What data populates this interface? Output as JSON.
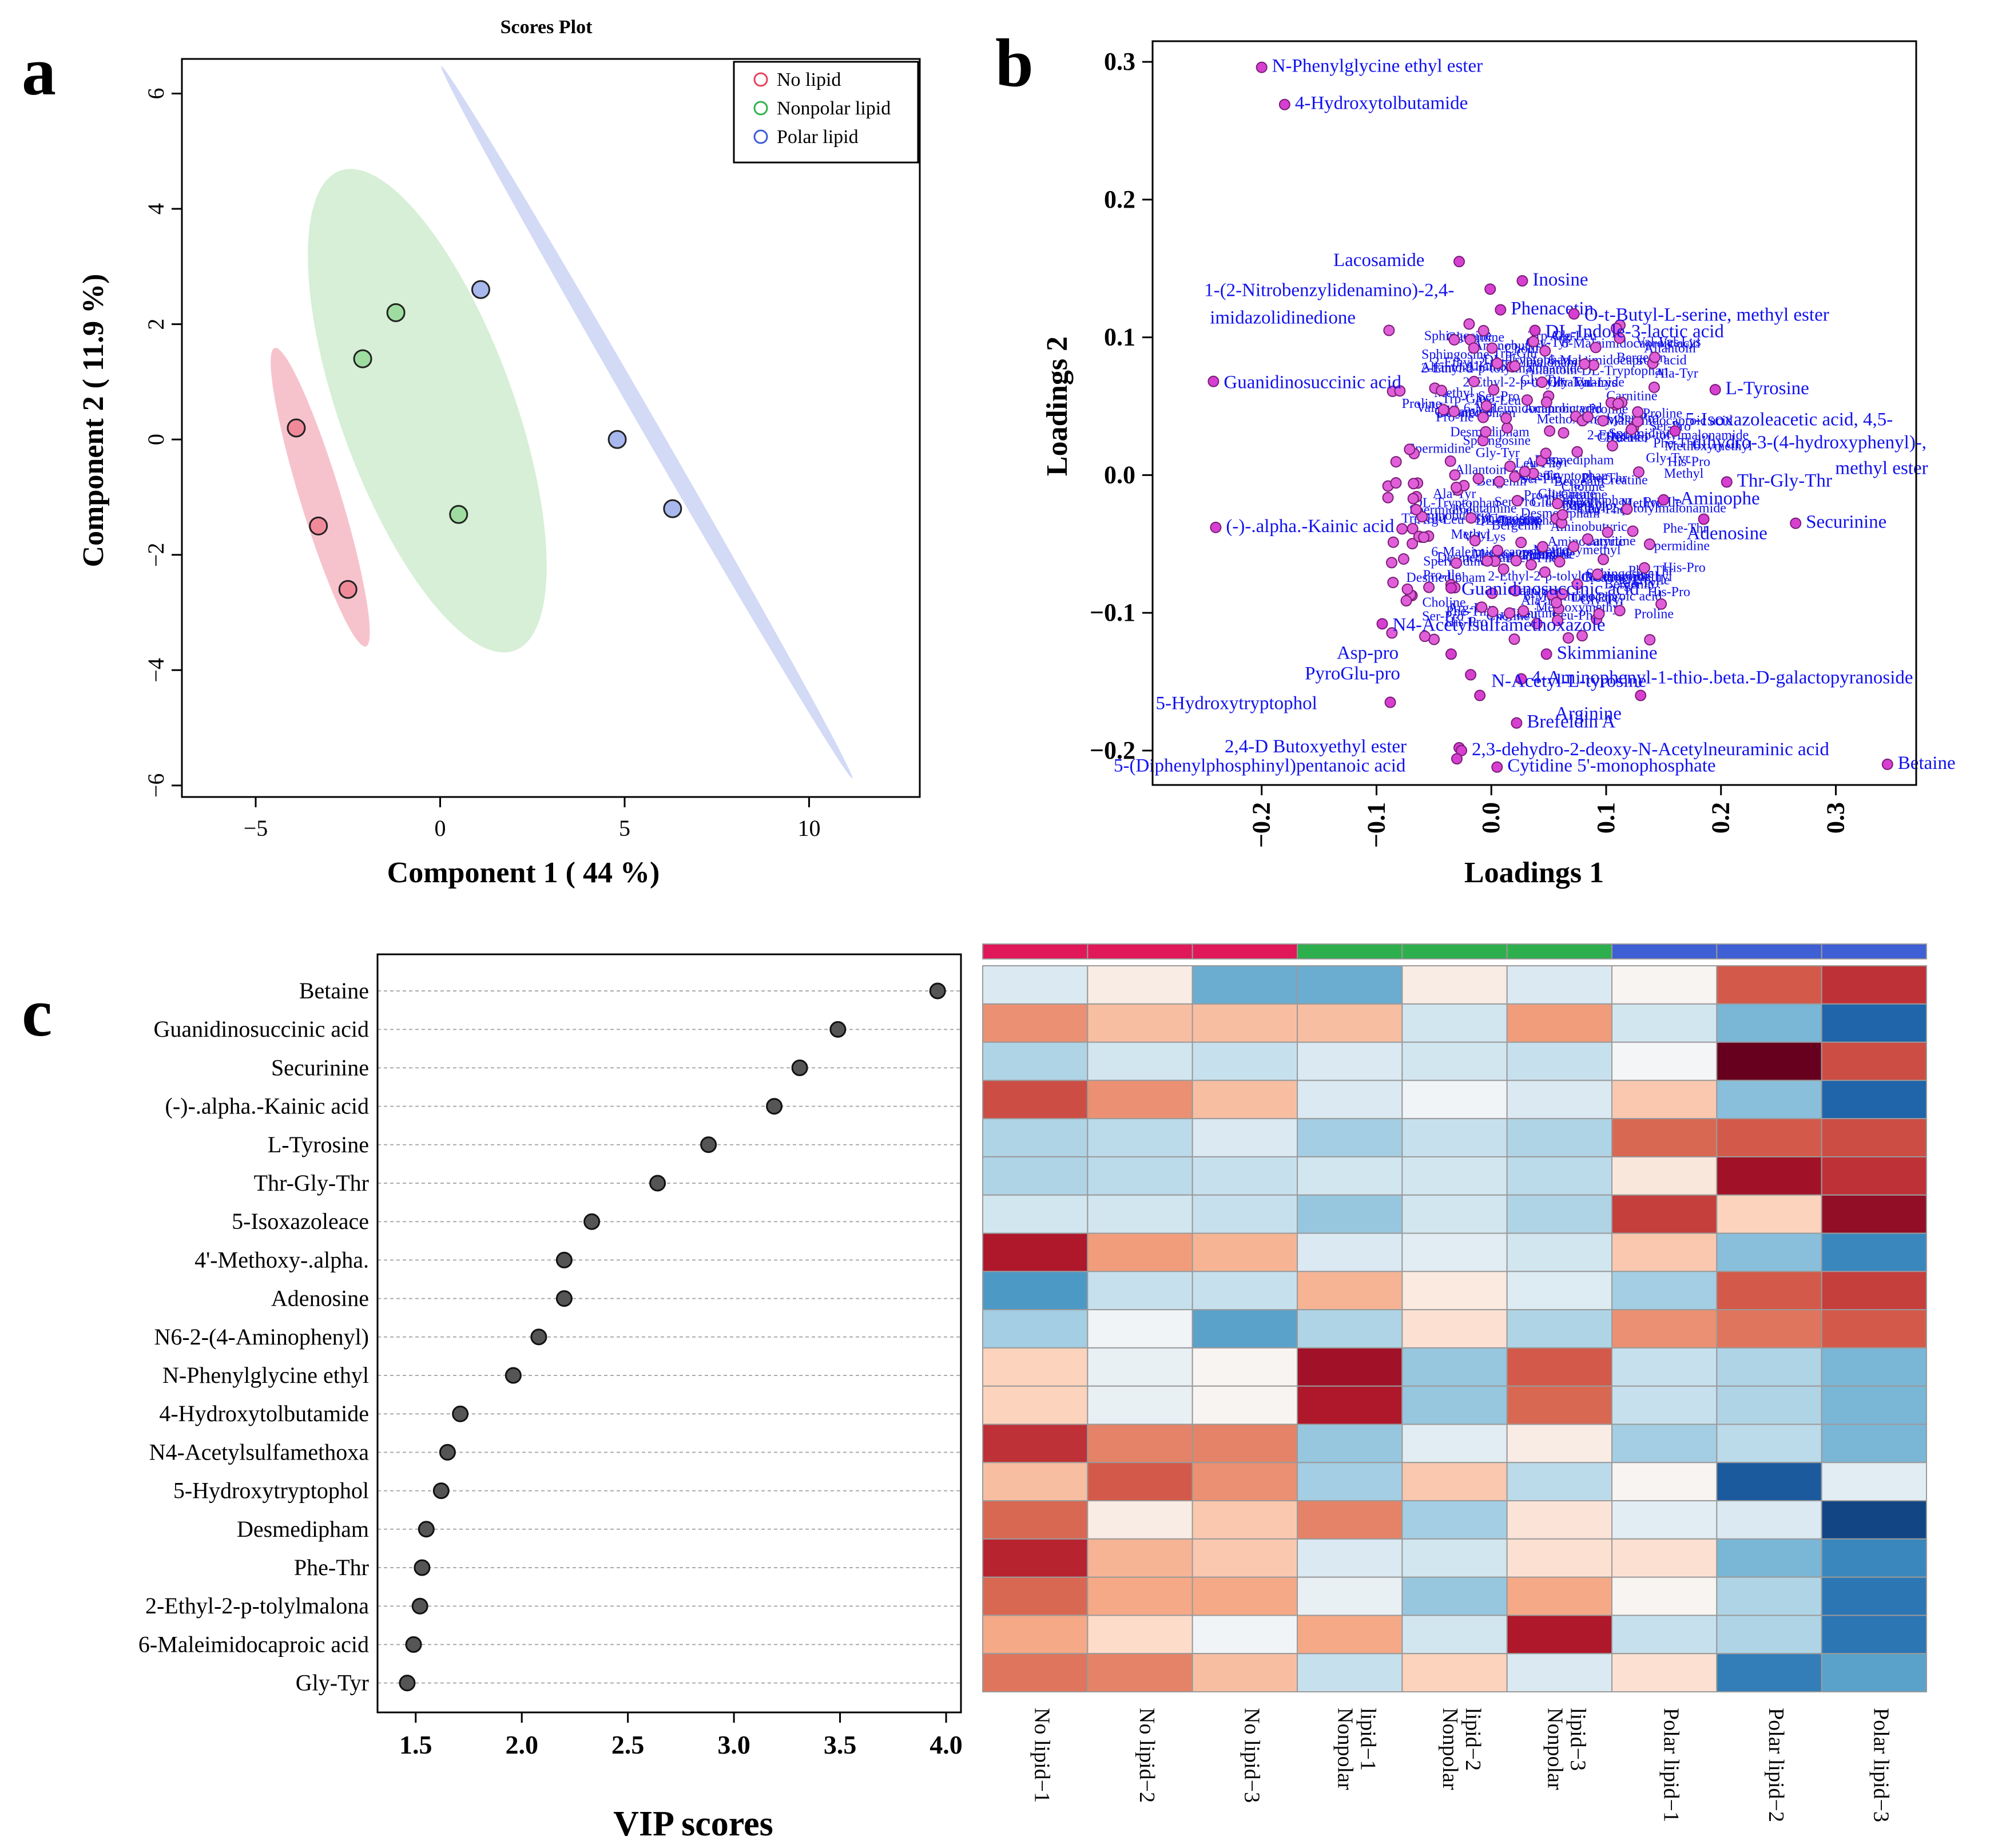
{
  "panel_letters": {
    "a": "a",
    "b": "b",
    "c": "c"
  },
  "chart_data": [
    {
      "id": "a",
      "type": "scatter",
      "title": "Scores Plot",
      "xlabel": "Component 1 ( 44 %)",
      "ylabel": "Component 2 ( 11.9 %)",
      "xlim": [
        -7,
        13
      ],
      "ylim": [
        -6.2,
        6.6
      ],
      "xticks": [
        -5,
        0,
        5,
        10
      ],
      "yticks": [
        -6,
        -4,
        -2,
        0,
        2,
        4,
        6
      ],
      "legend_position": "top-right",
      "series": [
        {
          "name": "No lipid",
          "color": "#e8425b",
          "fill": "#f08a99",
          "ellipse_fill": "#f4b9c4",
          "points": [
            [
              -3.9,
              0.2
            ],
            [
              -3.3,
              -1.5
            ],
            [
              -2.5,
              -2.6
            ]
          ]
        },
        {
          "name": "Nonpolar lipid",
          "color": "#2fb24a",
          "fill": "#9fdc9f",
          "ellipse_fill": "#cfeccf",
          "points": [
            [
              -2.1,
              1.4
            ],
            [
              -1.2,
              2.2
            ],
            [
              0.5,
              -1.3
            ]
          ]
        },
        {
          "name": "Polar lipid",
          "color": "#3d5bd9",
          "fill": "#a8b8ee",
          "ellipse_fill": "#cbd3f4",
          "points": [
            [
              1.1,
              2.6
            ],
            [
              4.8,
              0.0
            ],
            [
              6.3,
              -1.2
            ]
          ]
        }
      ]
    },
    {
      "id": "b",
      "type": "scatter",
      "xlabel": "Loadings 1",
      "ylabel": "Loadings 2",
      "xlim": [
        -0.295,
        0.37
      ],
      "ylim": [
        -0.225,
        0.315
      ],
      "xticks": [
        -0.2,
        -0.1,
        0.0,
        0.1,
        0.2,
        0.3
      ],
      "yticks": [
        -0.2,
        -0.1,
        0.0,
        0.1,
        0.2,
        0.3
      ],
      "tick_labels": {
        "x": [
          "−0.2",
          "−0.1",
          "0.0",
          "0.1",
          "0.2",
          "0.3"
        ],
        "y": [
          "−0.2",
          "−0.1",
          "0.0",
          "0.1",
          "0.2",
          "0.3"
        ]
      },
      "point_color": "#d63fd0",
      "label_color": "#1111ee",
      "labeled_points": [
        {
          "x": -0.2,
          "y": 0.296,
          "label": "N-Phenylglycine ethyl ester"
        },
        {
          "x": -0.18,
          "y": 0.269,
          "label": "4-Hydroxytolbutamide"
        },
        {
          "x": -0.028,
          "y": 0.155,
          "label": "Lacosamide"
        },
        {
          "x": 0.027,
          "y": 0.141,
          "label": "Inosine"
        },
        {
          "x": -0.001,
          "y": 0.135,
          "label": "1-(2-Nitrobenzylidenamino)-2,4-"
        },
        {
          "x": -0.001,
          "y": 0.135,
          "label": "imidazolidinedione"
        },
        {
          "x": 0.008,
          "y": 0.12,
          "label": "Phenacetin"
        },
        {
          "x": 0.072,
          "y": 0.117,
          "label": "O-t-Butyl-L-serine, methyl ester"
        },
        {
          "x": 0.038,
          "y": 0.105,
          "label": "DL-Indole-3-lactic acid"
        },
        {
          "x": -0.242,
          "y": 0.068,
          "label": "Guanidinosuccinic acid"
        },
        {
          "x": 0.195,
          "y": 0.062,
          "label": "L-Tyrosine"
        },
        {
          "x": 0.16,
          "y": 0.032,
          "label": "5-Isoxazoleacetic acid, 4,5-"
        },
        {
          "x": 0.16,
          "y": 0.032,
          "label": "dihydro-3-(4-hydroxyphenyl)-,"
        },
        {
          "x": 0.16,
          "y": 0.032,
          "label": "methyl ester"
        },
        {
          "x": 0.205,
          "y": -0.005,
          "label": "Thr-Gly-Thr"
        },
        {
          "x": 0.15,
          "y": -0.018,
          "label": "-Aminophe"
        },
        {
          "x": 0.185,
          "y": -0.032,
          "label": "Adenosine"
        },
        {
          "x": 0.265,
          "y": -0.035,
          "label": "Securinine"
        },
        {
          "x": -0.24,
          "y": -0.038,
          "label": "(-)-.alpha.-Kainic acid"
        },
        {
          "x": -0.095,
          "y": -0.108,
          "label": "N4-Acetylsulfamethoxazole"
        },
        {
          "x": -0.035,
          "y": -0.13,
          "label": "Asp-pro"
        },
        {
          "x": 0.048,
          "y": -0.13,
          "label": "Skimmianine"
        },
        {
          "x": -0.018,
          "y": -0.145,
          "label": "PyroGlu-pro"
        },
        {
          "x": 0.026,
          "y": -0.148,
          "label": "4-Aminophenyl-1-thio-.beta.-D-galactopyranoside"
        },
        {
          "x": 0.13,
          "y": -0.16,
          "label": "Arginine"
        },
        {
          "x": -0.088,
          "y": -0.165,
          "label": "5-Hydroxytryptophol"
        },
        {
          "x": -0.01,
          "y": -0.16,
          "label": "N-Acetyl-L-tyrosine"
        },
        {
          "x": 0.022,
          "y": -0.18,
          "label": "Brefeldin A"
        },
        {
          "x": -0.028,
          "y": -0.198,
          "label": "2,4-D Butoxyethyl ester"
        },
        {
          "x": -0.026,
          "y": -0.2,
          "label": "2,3-dehydro-2-deoxy-N-Acetylneuraminic acid"
        },
        {
          "x": -0.03,
          "y": -0.206,
          "label": "5-(Diphenylphosphinyl)pentanoic acid"
        },
        {
          "x": 0.005,
          "y": -0.212,
          "label": "Cytidine 5'-monophosphate"
        },
        {
          "x": 0.345,
          "y": -0.21,
          "label": "Betaine"
        },
        {
          "x": -0.035,
          "y": -0.082,
          "label": "Guanidinosuccinic acid"
        }
      ],
      "cluttered_labels": [
        "Desmedipham",
        "6-Maleimidocaproic acid",
        "DL-Tryptophan",
        "2-Ethyl-2-p-tolylmalonamide",
        "Phe-Thr",
        "Ser-Pro",
        "Gly-Tyr",
        "Pro-Ile",
        "Methoxymethyl",
        "Bergenin",
        "Arg-Leu",
        "Val-Lys",
        "Ala-Tyr",
        "His-Pro",
        "Leu-Phe",
        "Carnitine",
        "Glutamine",
        "Proline",
        "Aminobutyric",
        "Trp-Glu",
        "Creatine",
        "Sphingosine",
        "Allantoin",
        "Choline",
        "Methyl",
        "Spermidine"
      ]
    },
    {
      "id": "c-vip",
      "type": "scatter",
      "xlabel": "VIP scores",
      "xlim": [
        1.32,
        4.07
      ],
      "xticks": [
        1.5,
        2.0,
        2.5,
        3.0,
        3.5,
        4.0
      ],
      "tick_labels": [
        "1.5",
        "2.0",
        "2.5",
        "3.0",
        "3.5",
        "4.0"
      ],
      "categories": [
        "Betaine",
        "Guanidinosuccinic acid",
        "Securinine",
        "(-)-.alpha.-Kainic acid",
        "L-Tyrosine",
        "Thr-Gly-Thr",
        "5-Isoxazoleace",
        "4'-Methoxy-.alpha.",
        "Adenosine",
        "N6-2-(4-Aminophenyl)",
        "N-Phenylglycine ethyl",
        "4-Hydroxytolbutamide",
        "N4-Acetylsulfamethoxa",
        "5-Hydroxytryptophol",
        "Desmedipham",
        "Phe-Thr",
        "2-Ethyl-2-p-tolylmalona",
        "6-Maleimidocaproic acid",
        "Gly-Tyr"
      ],
      "values": [
        3.96,
        3.49,
        3.31,
        3.19,
        2.88,
        2.64,
        2.33,
        2.2,
        2.2,
        2.08,
        1.96,
        1.71,
        1.65,
        1.62,
        1.55,
        1.53,
        1.52,
        1.49,
        1.46
      ],
      "point_color": "#555555"
    },
    {
      "id": "c-heatmap",
      "type": "heatmap",
      "columns": [
        "No lipid−1",
        "No lipid−2",
        "No lipid−3",
        "Nonpolar lipid−1",
        "Nonpolar lipid−2",
        "Nonpolar lipid−3",
        "Polar lipid−1",
        "Polar lipid−2",
        "Polar lipid−3"
      ],
      "column_groups": [
        "No lipid",
        "No lipid",
        "No lipid",
        "Nonpolar lipid",
        "Nonpolar lipid",
        "Nonpolar lipid",
        "Polar lipid",
        "Polar lipid",
        "Polar lipid"
      ],
      "group_colors": {
        "No lipid": "#e0185a",
        "Nonpolar lipid": "#2eaf4d",
        "Polar lipid": "#3f5fd4"
      },
      "rows": [
        "Betaine",
        "Guanidinosuccinic acid",
        "Securinine",
        "(-)-.alpha.-Kainic acid",
        "L-Tyrosine",
        "Thr-Gly-Thr",
        "5-Isoxazoleace",
        "4'-Methoxy-.alpha.",
        "Adenosine",
        "N6-2-(4-Aminophenyl)",
        "N-Phenylglycine ethyl",
        "4-Hydroxytolbutamide",
        "N4-Acetylsulfamethoxa",
        "5-Hydroxytryptophol",
        "Desmedipham",
        "Phe-Thr",
        "2-Ethyl-2-p-tolylmalona",
        "6-Maleimidocaproic acid",
        "Gly-Tyr"
      ],
      "values": [
        [
          -0.4,
          0.2,
          -1.3,
          -1.3,
          0.2,
          -0.4,
          0.05,
          1.6,
          1.9
        ],
        [
          1.2,
          0.8,
          0.8,
          0.8,
          -0.5,
          1.1,
          -0.5,
          -1.2,
          -2.1
        ],
        [
          -0.8,
          -0.5,
          -0.6,
          -0.4,
          -0.5,
          -0.6,
          -0.05,
          2.6,
          1.7
        ],
        [
          1.7,
          1.2,
          0.8,
          -0.4,
          -0.1,
          -0.4,
          0.7,
          -1.1,
          -2.1
        ],
        [
          -0.8,
          -0.7,
          -0.4,
          -0.9,
          -0.6,
          -0.8,
          1.5,
          1.6,
          1.7
        ],
        [
          -0.8,
          -0.7,
          -0.6,
          -0.5,
          -0.5,
          -0.7,
          0.3,
          2.2,
          1.9
        ],
        [
          -0.5,
          -0.5,
          -0.6,
          -1.0,
          -0.5,
          -0.8,
          1.8,
          0.6,
          2.3
        ],
        [
          2.1,
          1.1,
          0.9,
          -0.4,
          -0.3,
          -0.5,
          0.7,
          -1.1,
          -1.7
        ],
        [
          -1.5,
          -0.6,
          -0.6,
          0.9,
          0.25,
          -0.35,
          -0.9,
          1.6,
          1.8
        ],
        [
          -0.9,
          -0.1,
          -1.4,
          -0.8,
          0.4,
          -0.8,
          1.2,
          1.4,
          1.6
        ],
        [
          0.6,
          -0.2,
          0.05,
          2.2,
          -1.0,
          1.6,
          -0.6,
          -0.8,
          -1.2
        ],
        [
          0.6,
          -0.2,
          0.05,
          2.1,
          -1.0,
          1.5,
          -0.6,
          -0.8,
          -1.2
        ],
        [
          1.9,
          1.3,
          1.3,
          -1.0,
          -0.3,
          0.2,
          -0.9,
          -0.7,
          -1.2
        ],
        [
          0.8,
          1.6,
          1.2,
          -0.9,
          0.7,
          -0.7,
          0.05,
          -2.2,
          -0.3
        ],
        [
          1.5,
          0.2,
          0.7,
          1.3,
          -0.9,
          0.35,
          -0.3,
          -0.4,
          -2.4
        ],
        [
          2.0,
          0.9,
          0.7,
          -0.4,
          -0.5,
          0.4,
          0.4,
          -1.2,
          -1.7
        ],
        [
          1.5,
          1.0,
          1.0,
          -0.2,
          -1.0,
          1.0,
          0.05,
          -0.8,
          -1.9
        ],
        [
          1.0,
          0.5,
          -0.1,
          1.0,
          -0.5,
          2.1,
          -0.6,
          -0.8,
          -1.9
        ],
        [
          1.4,
          1.3,
          0.8,
          -0.6,
          0.6,
          -0.4,
          0.4,
          -1.8,
          -1.4
        ]
      ],
      "color_scale": {
        "low": "#08306b",
        "mid": "#f7f7f7",
        "high": "#67001f",
        "range": [
          -2.6,
          2.6
        ]
      }
    }
  ]
}
